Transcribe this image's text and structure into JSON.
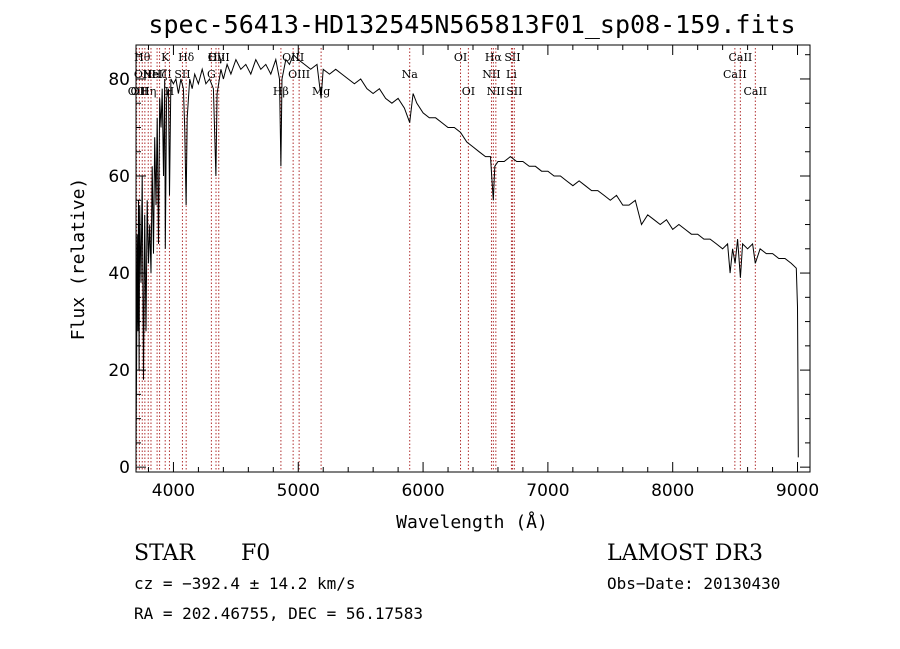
{
  "chart_data": {
    "type": "line",
    "title": "spec-56413-HD132545N565813F01_sp08-159.fits",
    "xlabel": "Wavelength (Å)",
    "ylabel": "Flux (relative)",
    "xlim": [
      3700,
      9100
    ],
    "ylim": [
      -1,
      87
    ],
    "xticks": [
      4000,
      5000,
      6000,
      7000,
      8000,
      9000
    ],
    "yticks": [
      0,
      20,
      40,
      60,
      80
    ],
    "grid": false,
    "series": [
      {
        "points": [
          [
            3700,
            3
          ],
          [
            3705,
            22
          ],
          [
            3710,
            48
          ],
          [
            3715,
            28
          ],
          [
            3720,
            55
          ],
          [
            3725,
            20
          ],
          [
            3730,
            54
          ],
          [
            3740,
            38
          ],
          [
            3750,
            60
          ],
          [
            3760,
            18
          ],
          [
            3770,
            52
          ],
          [
            3780,
            28
          ],
          [
            3790,
            55
          ],
          [
            3800,
            42
          ],
          [
            3810,
            50
          ],
          [
            3820,
            40
          ],
          [
            3830,
            62
          ],
          [
            3840,
            44
          ],
          [
            3850,
            68
          ],
          [
            3860,
            54
          ],
          [
            3870,
            72
          ],
          [
            3880,
            46
          ],
          [
            3890,
            76
          ],
          [
            3900,
            70
          ],
          [
            3910,
            78
          ],
          [
            3920,
            60
          ],
          [
            3930,
            80
          ],
          [
            3935,
            45
          ],
          [
            3945,
            76
          ],
          [
            3960,
            78
          ],
          [
            3968,
            56
          ],
          [
            3980,
            80
          ],
          [
            4000,
            79
          ],
          [
            4020,
            80
          ],
          [
            4040,
            77
          ],
          [
            4060,
            80
          ],
          [
            4080,
            78
          ],
          [
            4090,
            70
          ],
          [
            4101,
            54
          ],
          [
            4110,
            72
          ],
          [
            4130,
            80
          ],
          [
            4150,
            78
          ],
          [
            4170,
            81
          ],
          [
            4200,
            79
          ],
          [
            4230,
            82
          ],
          [
            4260,
            79
          ],
          [
            4290,
            80
          ],
          [
            4320,
            78
          ],
          [
            4340,
            60
          ],
          [
            4350,
            77
          ],
          [
            4380,
            82
          ],
          [
            4400,
            80
          ],
          [
            4430,
            83
          ],
          [
            4460,
            81
          ],
          [
            4500,
            84
          ],
          [
            4540,
            82
          ],
          [
            4580,
            83
          ],
          [
            4620,
            81
          ],
          [
            4660,
            84
          ],
          [
            4700,
            82
          ],
          [
            4740,
            83
          ],
          [
            4780,
            81
          ],
          [
            4820,
            84
          ],
          [
            4850,
            80
          ],
          [
            4861,
            62
          ],
          [
            4870,
            80
          ],
          [
            4900,
            84
          ],
          [
            4930,
            83
          ],
          [
            4960,
            85
          ],
          [
            5000,
            84
          ],
          [
            5050,
            83
          ],
          [
            5100,
            82
          ],
          [
            5150,
            83
          ],
          [
            5183,
            76
          ],
          [
            5200,
            82
          ],
          [
            5250,
            81
          ],
          [
            5300,
            82
          ],
          [
            5350,
            81
          ],
          [
            5400,
            80
          ],
          [
            5450,
            79
          ],
          [
            5500,
            80
          ],
          [
            5550,
            78
          ],
          [
            5600,
            77
          ],
          [
            5650,
            78
          ],
          [
            5700,
            76
          ],
          [
            5750,
            75
          ],
          [
            5800,
            76
          ],
          [
            5850,
            74
          ],
          [
            5893,
            71
          ],
          [
            5920,
            77
          ],
          [
            5950,
            75
          ],
          [
            6000,
            73
          ],
          [
            6050,
            72
          ],
          [
            6100,
            72
          ],
          [
            6150,
            71
          ],
          [
            6200,
            70
          ],
          [
            6250,
            70
          ],
          [
            6300,
            69
          ],
          [
            6350,
            67
          ],
          [
            6400,
            66
          ],
          [
            6450,
            65
          ],
          [
            6500,
            64
          ],
          [
            6540,
            64
          ],
          [
            6550,
            60
          ],
          [
            6563,
            55
          ],
          [
            6575,
            62
          ],
          [
            6600,
            63
          ],
          [
            6650,
            63
          ],
          [
            6700,
            64
          ],
          [
            6750,
            63
          ],
          [
            6800,
            63
          ],
          [
            6850,
            62
          ],
          [
            6900,
            62
          ],
          [
            6950,
            61
          ],
          [
            7000,
            61
          ],
          [
            7050,
            60
          ],
          [
            7100,
            60
          ],
          [
            7150,
            59
          ],
          [
            7200,
            58
          ],
          [
            7250,
            59
          ],
          [
            7300,
            58
          ],
          [
            7350,
            57
          ],
          [
            7400,
            57
          ],
          [
            7450,
            56
          ],
          [
            7500,
            55
          ],
          [
            7550,
            56
          ],
          [
            7600,
            54
          ],
          [
            7650,
            54
          ],
          [
            7700,
            55
          ],
          [
            7750,
            50
          ],
          [
            7800,
            52
          ],
          [
            7850,
            51
          ],
          [
            7900,
            50
          ],
          [
            7950,
            51
          ],
          [
            8000,
            49
          ],
          [
            8050,
            50
          ],
          [
            8100,
            49
          ],
          [
            8150,
            48
          ],
          [
            8200,
            48
          ],
          [
            8250,
            47
          ],
          [
            8300,
            47
          ],
          [
            8350,
            46
          ],
          [
            8400,
            45
          ],
          [
            8440,
            46
          ],
          [
            8460,
            40
          ],
          [
            8480,
            45
          ],
          [
            8500,
            42
          ],
          [
            8520,
            47
          ],
          [
            8542,
            39
          ],
          [
            8560,
            46
          ],
          [
            8600,
            45
          ],
          [
            8640,
            46
          ],
          [
            8662,
            42
          ],
          [
            8700,
            45
          ],
          [
            8750,
            44
          ],
          [
            8800,
            44
          ],
          [
            8850,
            43
          ],
          [
            8900,
            43
          ],
          [
            8950,
            42
          ],
          [
            8990,
            41
          ],
          [
            9000,
            33
          ],
          [
            9003,
            20
          ],
          [
            9006,
            2
          ]
        ]
      }
    ],
    "line_markers": [
      {
        "wl": 3705,
        "label": "OII",
        "row": 2
      },
      {
        "wl": 3727,
        "label": "OII",
        "row": 2
      },
      {
        "wl": 3750,
        "label": "Hθ",
        "row": 0
      },
      {
        "wl": 3771,
        "label": "OIII",
        "row": 1
      },
      {
        "wl": 3798,
        "label": "Hη",
        "row": 2
      },
      {
        "wl": 3820,
        "label": "He",
        "row": 1
      },
      {
        "wl": 3869,
        "label": "NeIII",
        "row": 1
      },
      {
        "wl": 3889,
        "label": "Hζ",
        "row": 1
      },
      {
        "wl": 3934,
        "label": "K",
        "row": 0
      },
      {
        "wl": 3968,
        "label": "H",
        "row": 2
      },
      {
        "wl": 4072,
        "label": "SII",
        "row": 1
      },
      {
        "wl": 4102,
        "label": "Hδ",
        "row": 0
      },
      {
        "wl": 4304,
        "label": "G",
        "row": 1
      },
      {
        "wl": 4341,
        "label": "Hγ",
        "row": 0
      },
      {
        "wl": 4363,
        "label": "OIII",
        "row": 0
      },
      {
        "wl": 4861,
        "label": "Hβ",
        "row": 2
      },
      {
        "wl": 4959,
        "label": "OIII",
        "row": 0
      },
      {
        "wl": 5007,
        "label": "OIII",
        "row": 1
      },
      {
        "wl": 5183,
        "label": "Mg",
        "row": 2
      },
      {
        "wl": 5893,
        "label": "Na",
        "row": 1
      },
      {
        "wl": 6300,
        "label": "OI",
        "row": 0
      },
      {
        "wl": 6363,
        "label": "OI",
        "row": 2
      },
      {
        "wl": 6548,
        "label": "NII",
        "row": 1
      },
      {
        "wl": 6563,
        "label": "Hα",
        "row": 0
      },
      {
        "wl": 6583,
        "label": "NII",
        "row": 2
      },
      {
        "wl": 6708,
        "label": "Li",
        "row": 1
      },
      {
        "wl": 6716,
        "label": "SII",
        "row": 0
      },
      {
        "wl": 6731,
        "label": "SII",
        "row": 2
      },
      {
        "wl": 8498,
        "label": "CaII",
        "row": 1
      },
      {
        "wl": 8542,
        "label": "CaII",
        "row": 0
      },
      {
        "wl": 8662,
        "label": "CaII",
        "row": 2
      }
    ]
  },
  "info": {
    "class": "STAR",
    "subclass": "F0",
    "survey": "LAMOST DR3",
    "cz": "cz = −392.4 ± 14.2 km/s",
    "obs_date": "Obs−Date: 20130430",
    "radec": "RA = 202.46755, DEC =  56.17583"
  }
}
